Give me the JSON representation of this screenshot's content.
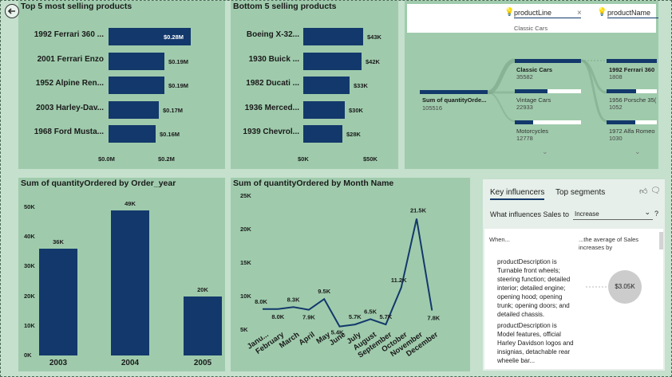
{
  "colors": {
    "bar": "#13386b",
    "panel": "#9fcbac",
    "canvas": "#c5e0cd"
  },
  "top5": {
    "title": "Top 5 most selling products",
    "items": [
      {
        "name": "1992 Ferrari 360 ...",
        "value": 0.28,
        "label": "$0.28M"
      },
      {
        "name": "2001 Ferrari Enzo",
        "value": 0.19,
        "label": "$0.19M"
      },
      {
        "name": "1952 Alpine Ren...",
        "value": 0.19,
        "label": "$0.19M"
      },
      {
        "name": "2003 Harley-Dav...",
        "value": 0.17,
        "label": "$0.17M"
      },
      {
        "name": "1968 Ford Musta...",
        "value": 0.16,
        "label": "$0.16M"
      }
    ],
    "ticks": [
      "$0.0M",
      "$0.2M"
    ]
  },
  "bottom5": {
    "title": "Bottom 5 selling products",
    "items": [
      {
        "name": "Boeing X-32...",
        "value": 43,
        "label": "$43K"
      },
      {
        "name": "1930 Buick ...",
        "value": 42,
        "label": "$42K"
      },
      {
        "name": "1982 Ducati ...",
        "value": 33,
        "label": "$33K"
      },
      {
        "name": "1936 Merced...",
        "value": 30,
        "label": "$30K"
      },
      {
        "name": "1939 Chevrol...",
        "value": 28,
        "label": "$28K"
      }
    ],
    "ticks": [
      "$0K",
      "$50K"
    ]
  },
  "decomp": {
    "filter1": {
      "label": "productLine",
      "sub": "Classic Cars"
    },
    "filter2": {
      "label": "productName"
    },
    "root": {
      "title": "Sum of quantityOrde...",
      "value": "105516"
    },
    "level1": [
      {
        "title": "Classic Cars",
        "value": "35582",
        "frac": 1.0,
        "selected": true
      },
      {
        "title": "Vintage Cars",
        "value": "22933",
        "frac": 0.64,
        "selected": false
      },
      {
        "title": "Motorcycles",
        "value": "12778",
        "frac": 0.36,
        "selected": false
      }
    ],
    "level2": [
      {
        "title": "1992 Ferrari 360",
        "value": "1808",
        "frac": 1.0
      },
      {
        "title": "1956 Porsche 35(",
        "value": "1052",
        "frac": 0.58
      },
      {
        "title": "1972 Alfa Romeo",
        "value": "1030",
        "frac": 0.57
      }
    ]
  },
  "chart_data": [
    {
      "type": "bar",
      "title": "Sum of quantityOrdered by Order_year",
      "categories": [
        "2003",
        "2004",
        "2005"
      ],
      "values": [
        36,
        49,
        20
      ],
      "labels": [
        "36K",
        "49K",
        "20K"
      ],
      "yticks": [
        "0K",
        "10K",
        "20K",
        "30K",
        "40K",
        "50K"
      ],
      "ylim": [
        0,
        50
      ]
    },
    {
      "type": "line",
      "title": "Sum of quantityOrdered by Month Name",
      "categories": [
        "Janu...",
        "February",
        "March",
        "April",
        "May",
        "June",
        "July",
        "August",
        "September",
        "October",
        "November",
        "December"
      ],
      "values": [
        8.0,
        8.0,
        8.3,
        7.9,
        9.5,
        5.4,
        5.7,
        6.5,
        5.7,
        11.2,
        21.5,
        7.8
      ],
      "labels": [
        "8.0K",
        "8.0K",
        "8.3K",
        "7.9K",
        "9.5K",
        "5.4K",
        "5.7K",
        "6.5K",
        "5.7K",
        "11.2K",
        "21.5K",
        "7.8K"
      ],
      "yticks": [
        "5K",
        "10K",
        "15K",
        "20K",
        "25K"
      ],
      "ylim": [
        5,
        25
      ]
    }
  ],
  "ki": {
    "tab1": "Key influencers",
    "tab2": "Top segments",
    "question": "What influences Sales to",
    "select": "Increase",
    "help": "?",
    "col1": "When...",
    "col2": "...the average of Sales increases by",
    "desc1": "productDescription is Turnable front wheels; steering function; detailed interior; detailed engine; opening hood; opening trunk; opening doors; and detailed chassis.",
    "bubble": "$3.05K",
    "desc2": "productDescription is Model features, official Harley Davidson logos and insignias, detachable rear wheelie bar..."
  }
}
